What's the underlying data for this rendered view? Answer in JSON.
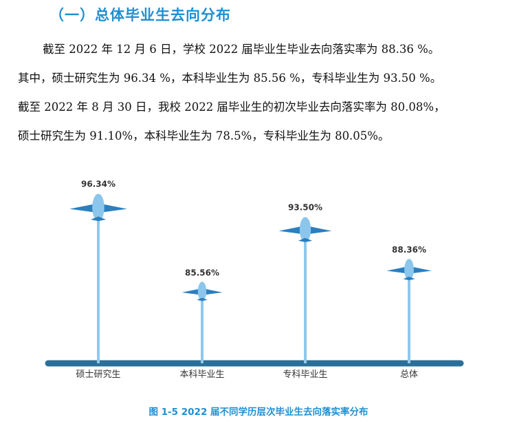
{
  "section": {
    "title": "（一）总体毕业生去向分布"
  },
  "paragraph": {
    "lines": [
      "截至 2022 年 12 月 6 日，学校  2022  届毕业生毕业去向落实率为 88.36 %。",
      "其中，硕士研究生为 96.34 %，本科毕业生为 85.56 %，专科毕业生为 93.50 %。",
      "截至 2022 年 8 月 30 日，我校 2022 届毕业生的初次毕业去向落实率为 80.08%，",
      "硕士研究生为 91.10%，本科毕业生为 78.5%，专科毕业生为 80.05%。"
    ]
  },
  "chart_data": {
    "type": "bar",
    "categories": [
      "硕士研究生",
      "本科毕业生",
      "专科毕业生",
      "总体"
    ],
    "values": [
      96.34,
      85.56,
      93.5,
      88.36
    ],
    "data_labels": [
      "96.34%",
      "85.56%",
      "93.50%",
      "88.36%"
    ],
    "ylim": [
      78,
      98
    ],
    "grid": false,
    "legend": "none",
    "colors": {
      "stem": "#8fc8ea",
      "plane_body": "#8cc6ec",
      "plane_wing": "#2a7fbf",
      "baseline": "#2a6f99",
      "label": "#333333",
      "category": "#333333"
    }
  },
  "caption": {
    "text": "图  1-5    2022 届不同学历层次毕业生去向落实率分布"
  }
}
